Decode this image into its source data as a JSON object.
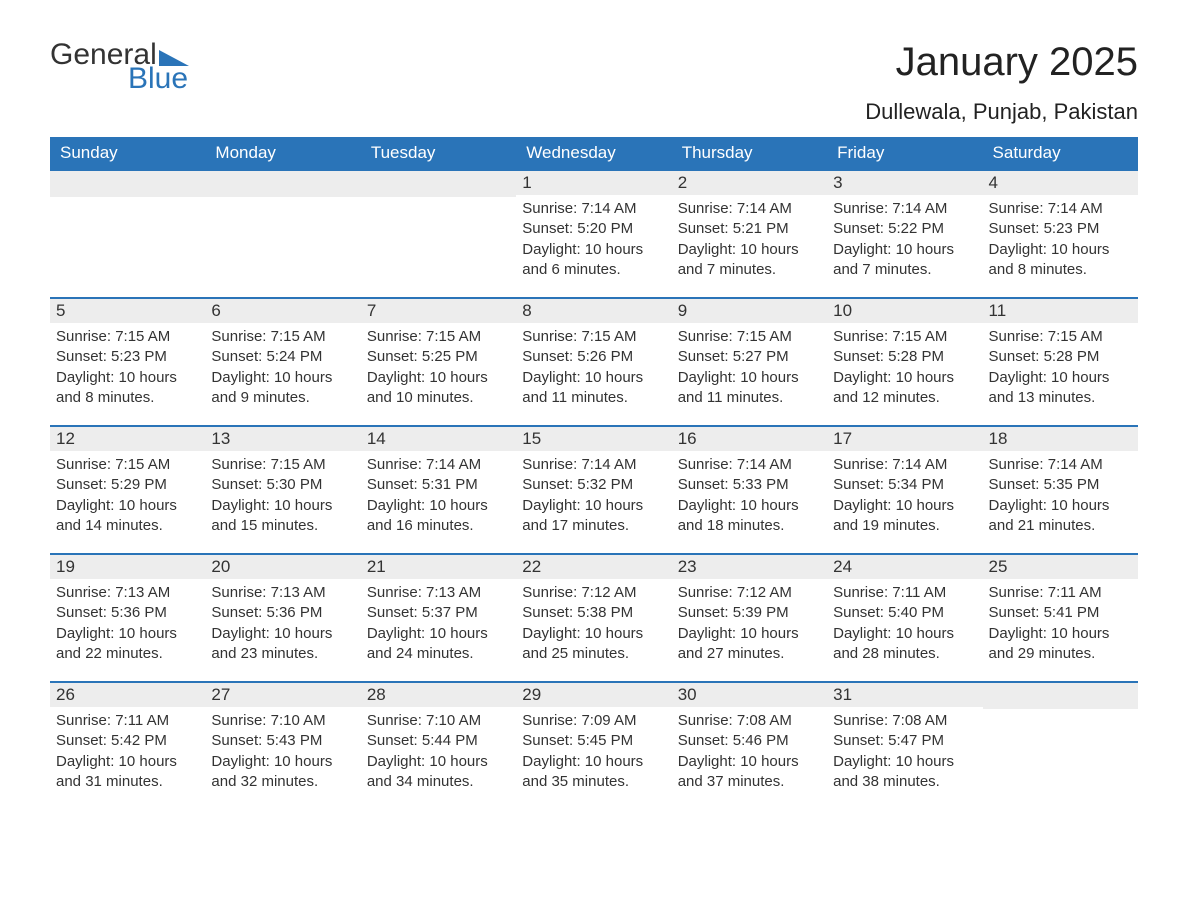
{
  "logo": {
    "word1": "General",
    "word2": "Blue"
  },
  "header": {
    "month_title": "January 2025",
    "location": "Dullewala, Punjab, Pakistan"
  },
  "calendar": {
    "header_bg": "#2a74b8",
    "header_fg": "#ffffff",
    "daynum_bg": "#ededed",
    "rule_color": "#2a74b8",
    "text_color": "#333333",
    "body_fontsize": 15,
    "daynum_fontsize": 17,
    "weekday_fontsize": 17,
    "weekdays": [
      "Sunday",
      "Monday",
      "Tuesday",
      "Wednesday",
      "Thursday",
      "Friday",
      "Saturday"
    ],
    "weeks": [
      [
        null,
        null,
        null,
        {
          "n": "1",
          "sunrise": "Sunrise: 7:14 AM",
          "sunset": "Sunset: 5:20 PM",
          "day1": "Daylight: 10 hours",
          "day2": "and 6 minutes."
        },
        {
          "n": "2",
          "sunrise": "Sunrise: 7:14 AM",
          "sunset": "Sunset: 5:21 PM",
          "day1": "Daylight: 10 hours",
          "day2": "and 7 minutes."
        },
        {
          "n": "3",
          "sunrise": "Sunrise: 7:14 AM",
          "sunset": "Sunset: 5:22 PM",
          "day1": "Daylight: 10 hours",
          "day2": "and 7 minutes."
        },
        {
          "n": "4",
          "sunrise": "Sunrise: 7:14 AM",
          "sunset": "Sunset: 5:23 PM",
          "day1": "Daylight: 10 hours",
          "day2": "and 8 minutes."
        }
      ],
      [
        {
          "n": "5",
          "sunrise": "Sunrise: 7:15 AM",
          "sunset": "Sunset: 5:23 PM",
          "day1": "Daylight: 10 hours",
          "day2": "and 8 minutes."
        },
        {
          "n": "6",
          "sunrise": "Sunrise: 7:15 AM",
          "sunset": "Sunset: 5:24 PM",
          "day1": "Daylight: 10 hours",
          "day2": "and 9 minutes."
        },
        {
          "n": "7",
          "sunrise": "Sunrise: 7:15 AM",
          "sunset": "Sunset: 5:25 PM",
          "day1": "Daylight: 10 hours",
          "day2": "and 10 minutes."
        },
        {
          "n": "8",
          "sunrise": "Sunrise: 7:15 AM",
          "sunset": "Sunset: 5:26 PM",
          "day1": "Daylight: 10 hours",
          "day2": "and 11 minutes."
        },
        {
          "n": "9",
          "sunrise": "Sunrise: 7:15 AM",
          "sunset": "Sunset: 5:27 PM",
          "day1": "Daylight: 10 hours",
          "day2": "and 11 minutes."
        },
        {
          "n": "10",
          "sunrise": "Sunrise: 7:15 AM",
          "sunset": "Sunset: 5:28 PM",
          "day1": "Daylight: 10 hours",
          "day2": "and 12 minutes."
        },
        {
          "n": "11",
          "sunrise": "Sunrise: 7:15 AM",
          "sunset": "Sunset: 5:28 PM",
          "day1": "Daylight: 10 hours",
          "day2": "and 13 minutes."
        }
      ],
      [
        {
          "n": "12",
          "sunrise": "Sunrise: 7:15 AM",
          "sunset": "Sunset: 5:29 PM",
          "day1": "Daylight: 10 hours",
          "day2": "and 14 minutes."
        },
        {
          "n": "13",
          "sunrise": "Sunrise: 7:15 AM",
          "sunset": "Sunset: 5:30 PM",
          "day1": "Daylight: 10 hours",
          "day2": "and 15 minutes."
        },
        {
          "n": "14",
          "sunrise": "Sunrise: 7:14 AM",
          "sunset": "Sunset: 5:31 PM",
          "day1": "Daylight: 10 hours",
          "day2": "and 16 minutes."
        },
        {
          "n": "15",
          "sunrise": "Sunrise: 7:14 AM",
          "sunset": "Sunset: 5:32 PM",
          "day1": "Daylight: 10 hours",
          "day2": "and 17 minutes."
        },
        {
          "n": "16",
          "sunrise": "Sunrise: 7:14 AM",
          "sunset": "Sunset: 5:33 PM",
          "day1": "Daylight: 10 hours",
          "day2": "and 18 minutes."
        },
        {
          "n": "17",
          "sunrise": "Sunrise: 7:14 AM",
          "sunset": "Sunset: 5:34 PM",
          "day1": "Daylight: 10 hours",
          "day2": "and 19 minutes."
        },
        {
          "n": "18",
          "sunrise": "Sunrise: 7:14 AM",
          "sunset": "Sunset: 5:35 PM",
          "day1": "Daylight: 10 hours",
          "day2": "and 21 minutes."
        }
      ],
      [
        {
          "n": "19",
          "sunrise": "Sunrise: 7:13 AM",
          "sunset": "Sunset: 5:36 PM",
          "day1": "Daylight: 10 hours",
          "day2": "and 22 minutes."
        },
        {
          "n": "20",
          "sunrise": "Sunrise: 7:13 AM",
          "sunset": "Sunset: 5:36 PM",
          "day1": "Daylight: 10 hours",
          "day2": "and 23 minutes."
        },
        {
          "n": "21",
          "sunrise": "Sunrise: 7:13 AM",
          "sunset": "Sunset: 5:37 PM",
          "day1": "Daylight: 10 hours",
          "day2": "and 24 minutes."
        },
        {
          "n": "22",
          "sunrise": "Sunrise: 7:12 AM",
          "sunset": "Sunset: 5:38 PM",
          "day1": "Daylight: 10 hours",
          "day2": "and 25 minutes."
        },
        {
          "n": "23",
          "sunrise": "Sunrise: 7:12 AM",
          "sunset": "Sunset: 5:39 PM",
          "day1": "Daylight: 10 hours",
          "day2": "and 27 minutes."
        },
        {
          "n": "24",
          "sunrise": "Sunrise: 7:11 AM",
          "sunset": "Sunset: 5:40 PM",
          "day1": "Daylight: 10 hours",
          "day2": "and 28 minutes."
        },
        {
          "n": "25",
          "sunrise": "Sunrise: 7:11 AM",
          "sunset": "Sunset: 5:41 PM",
          "day1": "Daylight: 10 hours",
          "day2": "and 29 minutes."
        }
      ],
      [
        {
          "n": "26",
          "sunrise": "Sunrise: 7:11 AM",
          "sunset": "Sunset: 5:42 PM",
          "day1": "Daylight: 10 hours",
          "day2": "and 31 minutes."
        },
        {
          "n": "27",
          "sunrise": "Sunrise: 7:10 AM",
          "sunset": "Sunset: 5:43 PM",
          "day1": "Daylight: 10 hours",
          "day2": "and 32 minutes."
        },
        {
          "n": "28",
          "sunrise": "Sunrise: 7:10 AM",
          "sunset": "Sunset: 5:44 PM",
          "day1": "Daylight: 10 hours",
          "day2": "and 34 minutes."
        },
        {
          "n": "29",
          "sunrise": "Sunrise: 7:09 AM",
          "sunset": "Sunset: 5:45 PM",
          "day1": "Daylight: 10 hours",
          "day2": "and 35 minutes."
        },
        {
          "n": "30",
          "sunrise": "Sunrise: 7:08 AM",
          "sunset": "Sunset: 5:46 PM",
          "day1": "Daylight: 10 hours",
          "day2": "and 37 minutes."
        },
        {
          "n": "31",
          "sunrise": "Sunrise: 7:08 AM",
          "sunset": "Sunset: 5:47 PM",
          "day1": "Daylight: 10 hours",
          "day2": "and 38 minutes."
        },
        null
      ]
    ]
  }
}
